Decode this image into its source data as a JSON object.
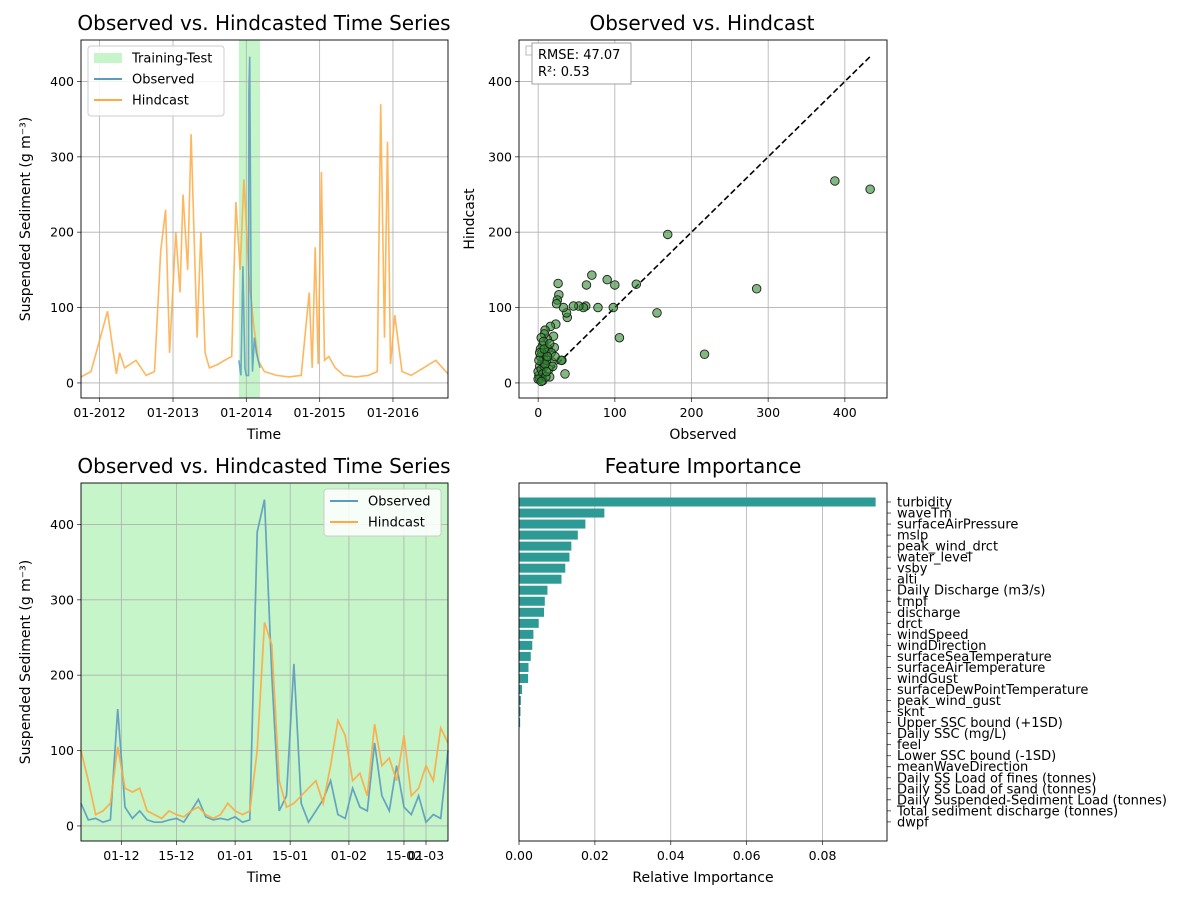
{
  "chart_data": [
    {
      "type": "line",
      "title": "Observed vs. Hindcasted Time Series",
      "xlabel": "Time",
      "ylabel": "Suspended Sediment (g m⁻³)",
      "xticks": [
        "01-2012",
        "01-2013",
        "01-2014",
        "01-2015",
        "01-2016"
      ],
      "yticks": [
        "0",
        "100",
        "200",
        "300",
        "400"
      ],
      "xlim": [
        "2011-10-01",
        "2016-10-01"
      ],
      "ylim": [
        -20,
        455
      ],
      "grid": true,
      "legend": "top-left",
      "legend_entries": [
        "Training-Test",
        "Observed",
        "Hindcast"
      ],
      "shaded_span": {
        "label": "Training-Test",
        "start": "2013-11-25",
        "end": "2014-03-10"
      },
      "series": [
        {
          "name": "Hindcast",
          "color": "#ffa940",
          "x": [
            "2011-10-01",
            "2011-11-20",
            "2012-02-10",
            "2012-03-25",
            "2012-04-10",
            "2012-05-05",
            "2012-07-01",
            "2012-08-20",
            "2012-10-01",
            "2012-11-01",
            "2012-11-25",
            "2012-12-15",
            "2013-01-15",
            "2013-02-05",
            "2013-02-20",
            "2013-03-15",
            "2013-04-01",
            "2013-05-01",
            "2013-05-20",
            "2013-06-10",
            "2013-07-01",
            "2013-08-15",
            "2013-09-15",
            "2013-10-20",
            "2013-11-10",
            "2013-12-01",
            "2013-12-20",
            "2014-01-15",
            "2014-02-05",
            "2014-03-01",
            "2014-04-01",
            "2014-06-01",
            "2014-08-01",
            "2014-10-01",
            "2014-11-10",
            "2014-11-25",
            "2014-12-10",
            "2014-12-25",
            "2015-01-10",
            "2015-01-25",
            "2015-02-15",
            "2015-03-20",
            "2015-05-01",
            "2015-07-01",
            "2015-09-01",
            "2015-10-15",
            "2015-11-01",
            "2015-11-20",
            "2015-12-05",
            "2015-12-20",
            "2016-01-10",
            "2016-02-15",
            "2016-04-01",
            "2016-06-01",
            "2016-08-01",
            "2016-10-01"
          ],
          "values": [
            8,
            15,
            95,
            12,
            40,
            20,
            30,
            10,
            15,
            175,
            230,
            40,
            200,
            120,
            250,
            150,
            330,
            60,
            200,
            40,
            20,
            25,
            30,
            35,
            240,
            150,
            270,
            140,
            80,
            30,
            15,
            10,
            8,
            10,
            120,
            20,
            180,
            25,
            280,
            30,
            35,
            20,
            10,
            8,
            10,
            15,
            370,
            60,
            320,
            25,
            90,
            15,
            10,
            20,
            30,
            12
          ]
        },
        {
          "name": "Observed",
          "color": "#5a9bbf",
          "x": [
            "2013-11-25",
            "2013-12-05",
            "2013-12-15",
            "2013-12-25",
            "2014-01-01",
            "2014-01-12",
            "2014-01-14",
            "2014-01-18",
            "2014-01-25",
            "2014-02-01",
            "2014-02-10",
            "2014-02-20",
            "2014-03-01",
            "2014-03-10"
          ],
          "values": [
            30,
            10,
            155,
            20,
            10,
            10,
            385,
            433,
            120,
            15,
            60,
            40,
            30,
            20
          ]
        }
      ]
    },
    {
      "type": "scatter",
      "title": "Observed vs. Hindcast",
      "xlabel": "Observed",
      "ylabel": "Hindcast",
      "xticks": [
        "0",
        "100",
        "200",
        "300",
        "400"
      ],
      "yticks": [
        "0",
        "100",
        "200",
        "300",
        "400"
      ],
      "xlim": [
        -25,
        455
      ],
      "ylim": [
        -20,
        455
      ],
      "grid": true,
      "annotation": [
        "RMSE: 47.07",
        "R²: 0.53"
      ],
      "reference_line": {
        "style": "dashed",
        "color": "#000000",
        "from": [
          0,
          0
        ],
        "to": [
          433,
          433
        ]
      },
      "point_color": "#2e8b2e",
      "points": [
        [
          433,
          257
        ],
        [
          387,
          268
        ],
        [
          285,
          125
        ],
        [
          217,
          38
        ],
        [
          169,
          197
        ],
        [
          155,
          93
        ],
        [
          128,
          131
        ],
        [
          106,
          60
        ],
        [
          100,
          130
        ],
        [
          98,
          100
        ],
        [
          90,
          137
        ],
        [
          78,
          100
        ],
        [
          70,
          143
        ],
        [
          63,
          130
        ],
        [
          62,
          102
        ],
        [
          59,
          100
        ],
        [
          53,
          102
        ],
        [
          46,
          102
        ],
        [
          38,
          87
        ],
        [
          37,
          93
        ],
        [
          35,
          12
        ],
        [
          33,
          100
        ],
        [
          31,
          30
        ],
        [
          30,
          30
        ],
        [
          27,
          117
        ],
        [
          26,
          132
        ],
        [
          25,
          110
        ],
        [
          24,
          105
        ],
        [
          23,
          78
        ],
        [
          21,
          47
        ],
        [
          20,
          62
        ],
        [
          18,
          28
        ],
        [
          16,
          75
        ],
        [
          15,
          8
        ],
        [
          13,
          45
        ],
        [
          12,
          58
        ],
        [
          10,
          40
        ],
        [
          9,
          70
        ],
        [
          8,
          65
        ],
        [
          7,
          32
        ],
        [
          6,
          50
        ],
        [
          5,
          28
        ],
        [
          4,
          60
        ],
        [
          3,
          35
        ],
        [
          2,
          22
        ],
        [
          1,
          10
        ],
        [
          0,
          15
        ],
        [
          2,
          5
        ],
        [
          4,
          18
        ],
        [
          6,
          12
        ],
        [
          8,
          22
        ],
        [
          11,
          30
        ],
        [
          14,
          18
        ],
        [
          17,
          40
        ],
        [
          19,
          22
        ],
        [
          22,
          35
        ],
        [
          3,
          45
        ],
        [
          5,
          40
        ],
        [
          7,
          55
        ],
        [
          9,
          25
        ],
        [
          12,
          35
        ],
        [
          1,
          30
        ],
        [
          0,
          5
        ],
        [
          2,
          40
        ],
        [
          6,
          3
        ],
        [
          10,
          8
        ],
        [
          4,
          2
        ],
        [
          8,
          45
        ],
        [
          15,
          52
        ],
        [
          11,
          15
        ]
      ]
    },
    {
      "type": "line",
      "title": "Observed vs. Hindcasted Time Series",
      "xlabel": "Time",
      "ylabel": "Suspended Sediment (g m⁻³)",
      "xticks": [
        "01-12",
        "15-12",
        "01-01",
        "15-01",
        "01-02",
        "15-02",
        "01-03"
      ],
      "yticks": [
        "0",
        "100",
        "200",
        "300",
        "400"
      ],
      "xlim_days": [
        0,
        100
      ],
      "ylim": [
        -20,
        455
      ],
      "grid": true,
      "legend": "top-right",
      "legend_entries": [
        "Observed",
        "Hindcast"
      ],
      "background_shading": "Training-Test",
      "series": [
        {
          "name": "Observed",
          "color": "#5a9bbf",
          "x": [
            0,
            2,
            4,
            6,
            8,
            10,
            12,
            14,
            16,
            18,
            20,
            22,
            24,
            26,
            28,
            30,
            32,
            34,
            36,
            38,
            40,
            42,
            44,
            46,
            48,
            50,
            52,
            54,
            56,
            58,
            60,
            62,
            64,
            66,
            68,
            70,
            72,
            74,
            76,
            78,
            80,
            82,
            84,
            86,
            88,
            90,
            92,
            94,
            96,
            98,
            100
          ],
          "values": [
            30,
            8,
            10,
            5,
            8,
            155,
            25,
            10,
            20,
            8,
            5,
            5,
            8,
            10,
            5,
            20,
            35,
            12,
            8,
            10,
            8,
            12,
            5,
            8,
            390,
            433,
            200,
            20,
            40,
            215,
            30,
            5,
            20,
            35,
            60,
            15,
            10,
            50,
            25,
            20,
            110,
            40,
            20,
            80,
            25,
            15,
            40,
            5,
            15,
            10,
            100
          ]
        },
        {
          "name": "Hindcast",
          "color": "#ffa940",
          "x": [
            0,
            2,
            4,
            6,
            8,
            10,
            12,
            14,
            16,
            18,
            20,
            22,
            24,
            26,
            28,
            30,
            32,
            34,
            36,
            38,
            40,
            42,
            44,
            46,
            48,
            50,
            52,
            54,
            56,
            58,
            60,
            62,
            64,
            66,
            68,
            70,
            72,
            74,
            76,
            78,
            80,
            82,
            84,
            86,
            88,
            90,
            92,
            94,
            96,
            98,
            100
          ],
          "values": [
            100,
            60,
            15,
            20,
            30,
            105,
            50,
            45,
            50,
            20,
            15,
            10,
            20,
            15,
            12,
            20,
            25,
            15,
            10,
            15,
            30,
            20,
            15,
            20,
            100,
            270,
            240,
            60,
            25,
            30,
            40,
            50,
            60,
            30,
            80,
            140,
            120,
            60,
            70,
            40,
            135,
            80,
            90,
            60,
            120,
            40,
            50,
            80,
            60,
            130,
            110
          ]
        }
      ]
    },
    {
      "type": "bar",
      "orientation": "horizontal",
      "title": "Feature Importance",
      "xlabel": "Relative Importance",
      "xticks": [
        "0.00",
        "0.02",
        "0.04",
        "0.06",
        "0.08"
      ],
      "xlim": [
        0,
        0.097
      ],
      "grid": true,
      "bar_color": "#2e9a96",
      "categories": [
        "turbidity",
        "waveTm",
        "surfaceAirPressure",
        "mslp",
        "peak_wind_drct",
        "water_level",
        "vsby",
        "alti",
        "Daily Discharge (m3/s)",
        "tmpf",
        "discharge",
        "drct",
        "windSpeed",
        "windDirection",
        "surfaceSeaTemperature",
        "surfaceAirTemperature",
        "windGust",
        "surfaceDewPointTemperature",
        "peak_wind_gust",
        "sknt",
        "Upper SSC bound (+1SD)",
        "Daily SSC (mg/L)",
        "feel",
        "Lower SSC bound (-1SD)",
        "meanWaveDirection",
        "Daily SS Load of fines (tonnes)",
        "Daily SS Load of sand (tonnes)",
        "Daily Suspended-Sediment Load (tonnes)",
        "Total sediment discharge (tonnes)",
        "dwpf"
      ],
      "values": [
        0.094,
        0.0225,
        0.0175,
        0.0155,
        0.0138,
        0.0133,
        0.0122,
        0.0112,
        0.0075,
        0.0068,
        0.0066,
        0.0052,
        0.0038,
        0.0035,
        0.0031,
        0.0025,
        0.0024,
        0.0008,
        0.0005,
        0.0004,
        0.0003,
        0,
        0,
        0,
        0,
        0,
        0,
        0,
        0,
        0
      ]
    }
  ]
}
